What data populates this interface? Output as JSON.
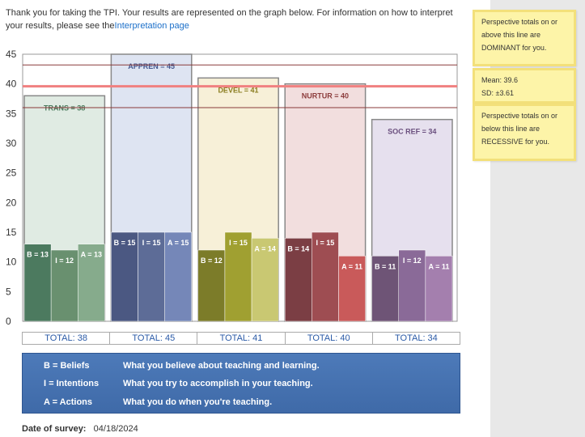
{
  "intro": {
    "text": "Thank you for taking the TPI. Your results are represented on the graph below. For information on how to interpret your results, please see the",
    "link_label": "Interpretation page"
  },
  "notes": {
    "dominant": "Perspective totals on or above this line are DOMINANT for you.",
    "mean": "Mean: 39.6",
    "sd": "SD: ±3.61",
    "recessive": "Perspective totals on or below this line are RECESSIVE for you."
  },
  "chart_data": {
    "type": "bar",
    "ylim": [
      0,
      45
    ],
    "yticks": [
      0,
      5,
      10,
      15,
      20,
      25,
      30,
      35,
      40,
      45
    ],
    "reference_lines": {
      "upper": 43.2,
      "mean": 39.6,
      "lower": 36.0
    },
    "perspectives": [
      {
        "label": "TRANS = 38",
        "total": 38,
        "bars": [
          {
            "label": "B = 13",
            "value": 13
          },
          {
            "label": "I = 12",
            "value": 12
          },
          {
            "label": "A = 13",
            "value": 13
          }
        ],
        "colors": {
          "bg": "#e0ebe3",
          "label": "#4a7a5d",
          "bars": [
            "#4c7a5f",
            "#69906f",
            "#86ab8c"
          ]
        }
      },
      {
        "label": "APPREN = 45",
        "total": 45,
        "bars": [
          {
            "label": "B = 15",
            "value": 15
          },
          {
            "label": "I = 15",
            "value": 15
          },
          {
            "label": "A = 15",
            "value": 15
          }
        ],
        "colors": {
          "bg": "#dee4f2",
          "label": "#445890",
          "bars": [
            "#4b5882",
            "#5d6c97",
            "#7587b8"
          ]
        }
      },
      {
        "label": "DEVEL = 41",
        "total": 41,
        "bars": [
          {
            "label": "B = 12",
            "value": 12
          },
          {
            "label": "I = 15",
            "value": 15
          },
          {
            "label": "A = 14",
            "value": 14
          }
        ],
        "colors": {
          "bg": "#f7f0d8",
          "label": "#8a7d1f",
          "bars": [
            "#7c7c29",
            "#a0a031",
            "#c9c872"
          ]
        }
      },
      {
        "label": "NURTUR = 40",
        "total": 40,
        "bars": [
          {
            "label": "B = 14",
            "value": 14
          },
          {
            "label": "I = 15",
            "value": 15
          },
          {
            "label": "A = 11",
            "value": 11
          }
        ],
        "colors": {
          "bg": "#f2dede",
          "label": "#8c3c3c",
          "bars": [
            "#7b3e44",
            "#9e4d52",
            "#c95a5a"
          ]
        }
      },
      {
        "label": "SOC REF = 34",
        "total": 34,
        "bars": [
          {
            "label": "B = 11",
            "value": 11
          },
          {
            "label": "I = 12",
            "value": 12
          },
          {
            "label": "A = 11",
            "value": 11
          }
        ],
        "colors": {
          "bg": "#e6e0ee",
          "label": "#6a4f7e",
          "bars": [
            "#6e5476",
            "#8a6a98",
            "#a47fae"
          ]
        }
      }
    ]
  },
  "totals": [
    "TOTAL:  38",
    "TOTAL:  45",
    "TOTAL:  41",
    "TOTAL:  40",
    "TOTAL:  34"
  ],
  "legend": [
    {
      "key": "B = Beliefs",
      "desc": "What you believe about teaching and learning."
    },
    {
      "key": "I = Intentions",
      "desc": "What you try to accomplish in your teaching."
    },
    {
      "key": "A = Actions",
      "desc": "What you do when you're teaching."
    }
  ],
  "survey": {
    "label": "Date of survey:",
    "date": "04/18/2024"
  }
}
